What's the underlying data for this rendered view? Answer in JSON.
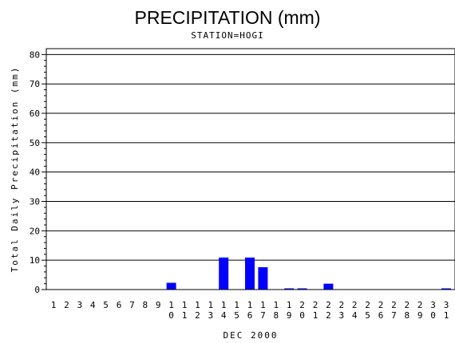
{
  "chart_data": {
    "type": "bar",
    "title": "PRECIPITATION (mm)",
    "subtitle": "STATION=HOGI",
    "xlabel": "DEC 2000",
    "ylabel": "Total Daily Precipitation (mm)",
    "ylim": [
      0,
      82
    ],
    "yticks": [
      0,
      10,
      20,
      30,
      40,
      50,
      60,
      70,
      80
    ],
    "grid": true,
    "bar_color": "#0000ff",
    "categories": [
      "1",
      "2",
      "3",
      "4",
      "5",
      "6",
      "7",
      "8",
      "9",
      "10",
      "11",
      "12",
      "13",
      "14",
      "15",
      "16",
      "17",
      "18",
      "19",
      "20",
      "21",
      "22",
      "23",
      "24",
      "25",
      "26",
      "27",
      "28",
      "29",
      "30",
      "31"
    ],
    "values": [
      0,
      0,
      0,
      0,
      0,
      0,
      0,
      0,
      0,
      2.3,
      0,
      0,
      0,
      10.9,
      0,
      10.9,
      7.6,
      0,
      0.3,
      0.3,
      0,
      2.0,
      0,
      0,
      0,
      0,
      0,
      0,
      0,
      0,
      0.3
    ]
  }
}
